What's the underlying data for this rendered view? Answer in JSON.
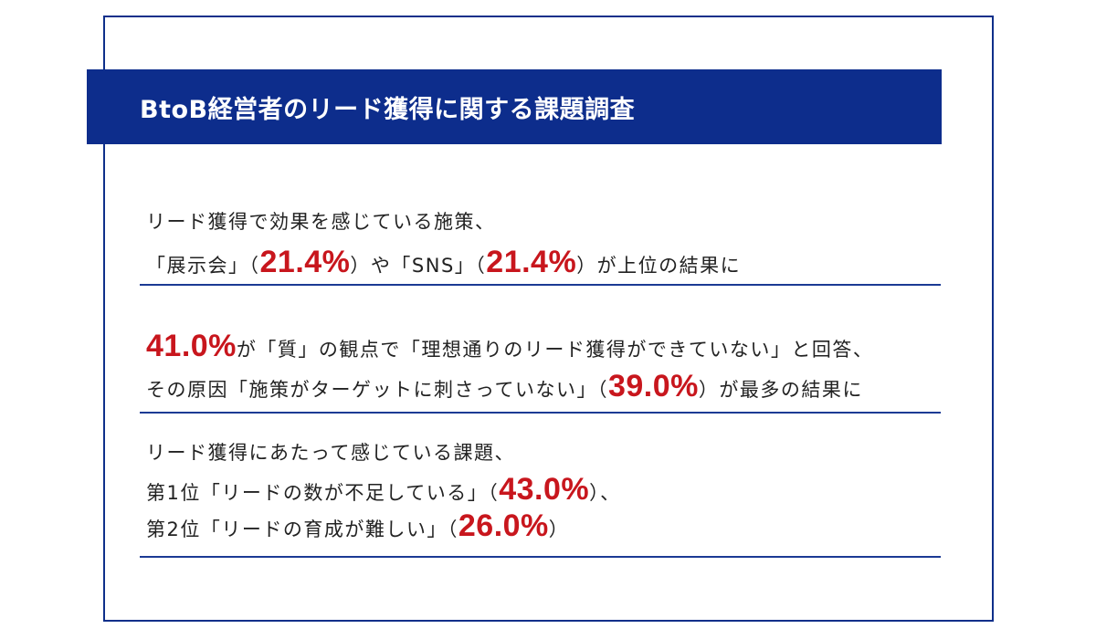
{
  "title": "BtoB経営者のリード獲得に関する課題調査",
  "findings": [
    {
      "line1": "リード獲得で効果を感じている施策、",
      "line2_a": "「展示会」（",
      "line2_h1": "21.4%",
      "line2_b": "）や「SNS」（",
      "line2_h2": "21.4%",
      "line2_c": "）が上位の結果に"
    },
    {
      "line1_h": "41.0%",
      "line1_a": "が「質」の観点で「理想通りのリード獲得ができていない」と回答、",
      "line2_a": "その原因「施策がターゲットに刺さっていない」（",
      "line2_h": "39.0%",
      "line2_b": "）が最多の結果に"
    },
    {
      "line1": "リード獲得にあたって感じている課題、",
      "line2_a": "第1位「リードの数が不足している」（",
      "line2_h": "43.0%",
      "line2_b": "）、",
      "line3_a": "第2位「リードの育成が難しい」（",
      "line3_h": "26.0%",
      "line3_b": "）"
    }
  ],
  "colors": {
    "navy": "#0d2d8c",
    "highlight_red": "#c8161d",
    "text": "#222222"
  }
}
